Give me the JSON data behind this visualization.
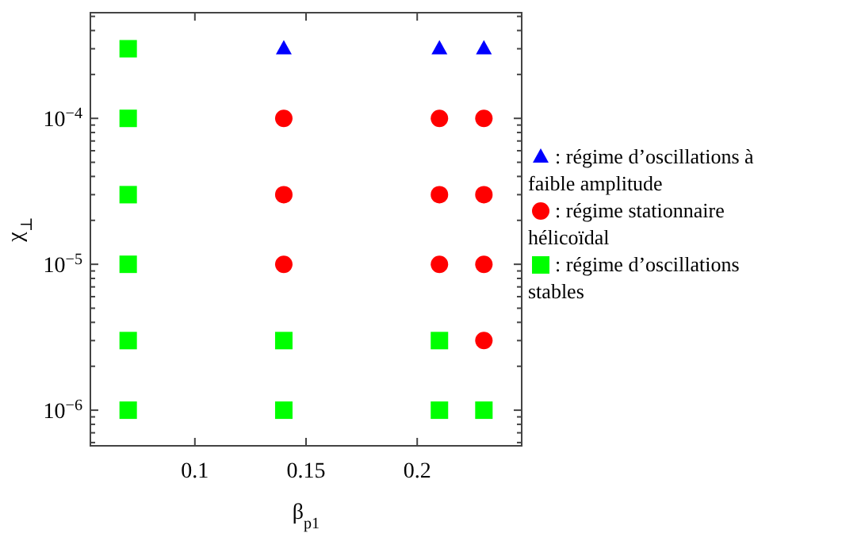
{
  "chart_data": {
    "type": "scatter",
    "xlabel": "β$_{p1}$",
    "ylabel": "χ$_{⊥}$",
    "log": "y",
    "legend": "right",
    "grid": false,
    "xlim": [
      0.053,
      0.247
    ],
    "xticks": [
      0.1,
      0.15,
      0.2
    ],
    "ylim": [
      5.7e-07,
      0.00053
    ],
    "yticks": [
      {
        "value": 6e-07,
        "label": null
      },
      {
        "value": 7e-07,
        "label": null
      },
      {
        "value": 8e-07,
        "label": null
      },
      {
        "value": 9e-07,
        "label": null
      },
      {
        "value": 1e-06,
        "label": "10$^{−6}$"
      },
      {
        "value": 2e-06,
        "label": null
      },
      {
        "value": 3e-06,
        "label": null
      },
      {
        "value": 4e-06,
        "label": null
      },
      {
        "value": 5e-06,
        "label": null
      },
      {
        "value": 6e-06,
        "label": null
      },
      {
        "value": 7e-06,
        "label": null
      },
      {
        "value": 8e-06,
        "label": null
      },
      {
        "value": 9e-06,
        "label": null
      },
      {
        "value": 1e-05,
        "label": "10$^{−5}$"
      },
      {
        "value": 2e-05,
        "label": null
      },
      {
        "value": 3e-05,
        "label": null
      },
      {
        "value": 4e-05,
        "label": null
      },
      {
        "value": 5e-05,
        "label": null
      },
      {
        "value": 6e-05,
        "label": null
      },
      {
        "value": 7e-05,
        "label": null
      },
      {
        "value": 8e-05,
        "label": null
      },
      {
        "value": 9e-05,
        "label": null
      },
      {
        "value": 0.0001,
        "label": "10$^{−4}$"
      },
      {
        "value": 0.0002,
        "label": null
      },
      {
        "value": 0.0003,
        "label": null
      },
      {
        "value": 0.0004,
        "label": null
      },
      {
        "value": 0.0005,
        "label": null
      }
    ],
    "series": [
      {
        "name": ": régime d’oscillations à faible amplitude",
        "color": "#0000ff",
        "marker": "triangle",
        "x": [
          0.14,
          0.21,
          0.23
        ],
        "values": [
          0.0003,
          0.0003,
          0.0003
        ]
      },
      {
        "name": ": régime stationnaire hélicoïdal",
        "color": "#ff0000",
        "marker": "circle",
        "x": [
          0.14,
          0.14,
          0.14,
          0.21,
          0.21,
          0.21,
          0.23,
          0.23,
          0.23,
          0.23
        ],
        "values": [
          1e-05,
          3e-05,
          0.0001,
          1e-05,
          3e-05,
          0.0001,
          3e-06,
          1e-05,
          3e-05,
          0.0001
        ]
      },
      {
        "name": ": régime d’oscillations stables",
        "color": "#00ff00",
        "marker": "square",
        "x": [
          0.07,
          0.07,
          0.07,
          0.07,
          0.07,
          0.07,
          0.14,
          0.14,
          0.21,
          0.21,
          0.23
        ],
        "values": [
          1e-06,
          3e-06,
          1e-05,
          3e-05,
          0.0001,
          0.0003,
          1e-06,
          3e-06,
          1e-06,
          3e-06,
          1e-06
        ]
      }
    ]
  }
}
